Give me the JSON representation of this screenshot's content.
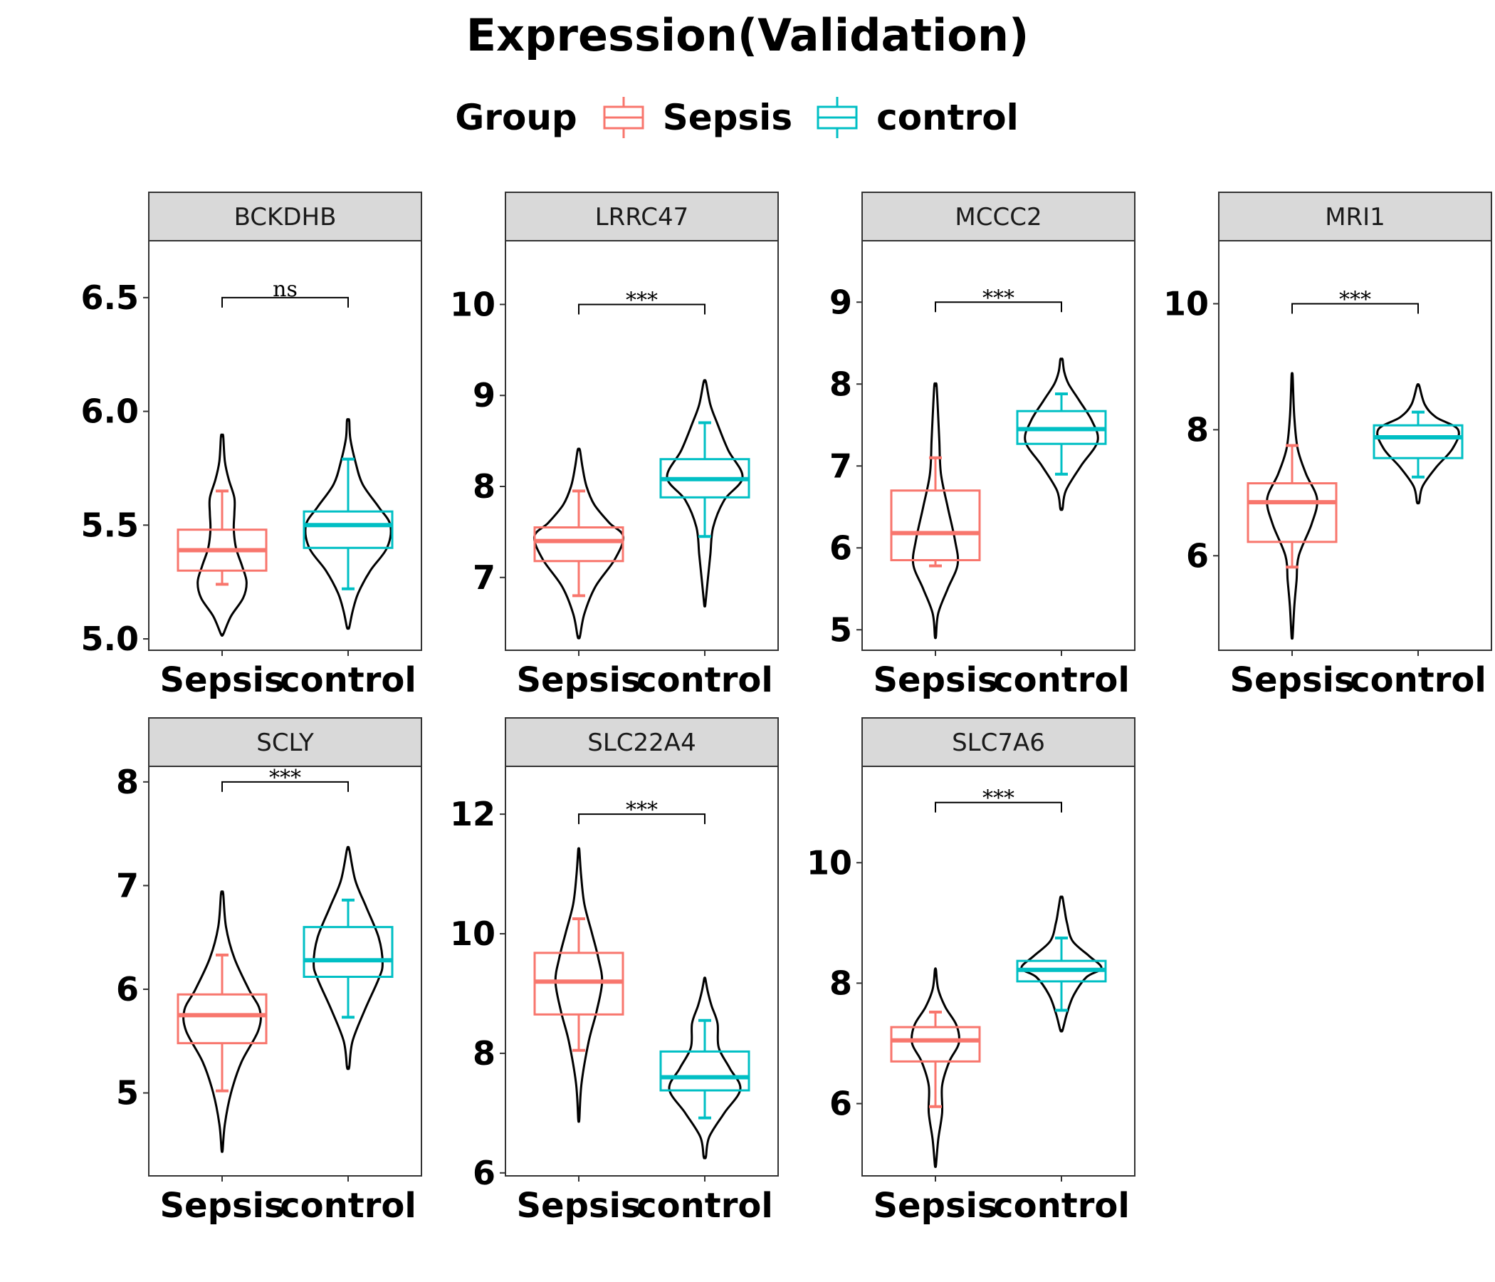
{
  "title": "Expression(Validation)",
  "legend": {
    "title": "Group",
    "items": [
      {
        "label": "Sepsis",
        "color": "#F8766D"
      },
      {
        "label": "control",
        "color": "#00BFC4"
      }
    ]
  },
  "chart_data": {
    "type": "violin+box",
    "categories": [
      "Sepsis",
      "control"
    ],
    "colors": {
      "Sepsis": "#F8766D",
      "control": "#00BFC4",
      "violin": "#000000",
      "strip": "#D9D9D9"
    },
    "grid": false,
    "legend_position": "top",
    "panels": [
      {
        "name": "BCKDHB",
        "ylim": [
          4.95,
          6.75
        ],
        "yticks": [
          5.0,
          5.5,
          6.0,
          6.5
        ],
        "ytick_labels": [
          "5.0",
          "5.5",
          "6.0",
          "6.5"
        ],
        "significance": {
          "label": "ns",
          "y": 6.5
        },
        "groups": [
          {
            "group": "Sepsis",
            "whisker_low": 5.24,
            "q1": 5.3,
            "median": 5.39,
            "q3": 5.48,
            "whisker_high": 5.65,
            "violin": [
              [
                5.02,
                0.02
              ],
              [
                5.1,
                0.16
              ],
              [
                5.18,
                0.38
              ],
              [
                5.25,
                0.44
              ],
              [
                5.32,
                0.36
              ],
              [
                5.4,
                0.25
              ],
              [
                5.48,
                0.21
              ],
              [
                5.55,
                0.22
              ],
              [
                5.62,
                0.22
              ],
              [
                5.7,
                0.12
              ],
              [
                5.78,
                0.05
              ],
              [
                5.89,
                0.02
              ]
            ]
          },
          {
            "group": "control",
            "whisker_low": 5.22,
            "q1": 5.4,
            "median": 5.5,
            "q3": 5.56,
            "whisker_high": 5.79,
            "violin": [
              [
                5.05,
                0.02
              ],
              [
                5.12,
                0.08
              ],
              [
                5.2,
                0.18
              ],
              [
                5.3,
                0.4
              ],
              [
                5.4,
                0.7
              ],
              [
                5.5,
                0.76
              ],
              [
                5.58,
                0.55
              ],
              [
                5.68,
                0.26
              ],
              [
                5.78,
                0.13
              ],
              [
                5.88,
                0.04
              ],
              [
                5.96,
                0.02
              ]
            ]
          }
        ]
      },
      {
        "name": "LRRC47",
        "ylim": [
          6.2,
          10.7
        ],
        "yticks": [
          7,
          8,
          9,
          10
        ],
        "ytick_labels": [
          "7",
          "8",
          "9",
          "10"
        ],
        "significance": {
          "label": "***",
          "y": 10.0
        },
        "groups": [
          {
            "group": "Sepsis",
            "whisker_low": 6.8,
            "q1": 7.18,
            "median": 7.4,
            "q3": 7.55,
            "whisker_high": 7.95,
            "violin": [
              [
                6.35,
                0.02
              ],
              [
                6.6,
                0.1
              ],
              [
                6.9,
                0.3
              ],
              [
                7.2,
                0.65
              ],
              [
                7.45,
                0.8
              ],
              [
                7.6,
                0.55
              ],
              [
                7.8,
                0.28
              ],
              [
                8.0,
                0.14
              ],
              [
                8.2,
                0.07
              ],
              [
                8.4,
                0.02
              ]
            ]
          },
          {
            "group": "control",
            "whisker_low": 7.45,
            "q1": 7.88,
            "median": 8.08,
            "q3": 8.3,
            "whisker_high": 8.7,
            "violin": [
              [
                6.7,
                0.01
              ],
              [
                6.95,
                0.05
              ],
              [
                7.25,
                0.1
              ],
              [
                7.55,
                0.15
              ],
              [
                7.85,
                0.35
              ],
              [
                8.1,
                0.68
              ],
              [
                8.4,
                0.42
              ],
              [
                8.7,
                0.22
              ],
              [
                8.9,
                0.1
              ],
              [
                9.15,
                0.02
              ]
            ]
          }
        ]
      },
      {
        "name": "MCCC2",
        "ylim": [
          4.75,
          9.75
        ],
        "yticks": [
          5,
          6,
          7,
          8,
          9
        ],
        "ytick_labels": [
          "5",
          "6",
          "7",
          "8",
          "9"
        ],
        "significance": {
          "label": "***",
          "y": 9.0
        },
        "groups": [
          {
            "group": "Sepsis",
            "whisker_low": 5.78,
            "q1": 5.85,
            "median": 6.18,
            "q3": 6.7,
            "whisker_high": 7.1,
            "violin": [
              [
                4.92,
                0.01
              ],
              [
                5.2,
                0.05
              ],
              [
                5.5,
                0.22
              ],
              [
                5.8,
                0.4
              ],
              [
                6.1,
                0.35
              ],
              [
                6.5,
                0.22
              ],
              [
                6.9,
                0.1
              ],
              [
                7.3,
                0.07
              ],
              [
                7.6,
                0.05
              ],
              [
                7.98,
                0.02
              ]
            ]
          },
          {
            "group": "control",
            "whisker_low": 6.9,
            "q1": 7.27,
            "median": 7.45,
            "q3": 7.67,
            "whisker_high": 7.88,
            "violin": [
              [
                6.48,
                0.02
              ],
              [
                6.7,
                0.08
              ],
              [
                7.0,
                0.35
              ],
              [
                7.3,
                0.65
              ],
              [
                7.55,
                0.55
              ],
              [
                7.8,
                0.32
              ],
              [
                8.0,
                0.13
              ],
              [
                8.15,
                0.05
              ],
              [
                8.3,
                0.02
              ]
            ]
          }
        ]
      },
      {
        "name": "MRI1",
        "ylim": [
          4.5,
          11.0
        ],
        "yticks": [
          6,
          8,
          10
        ],
        "ytick_labels": [
          "6",
          "8",
          "10"
        ],
        "significance": {
          "label": "***",
          "y": 10.0
        },
        "groups": [
          {
            "group": "Sepsis",
            "whisker_low": 5.82,
            "q1": 6.22,
            "median": 6.85,
            "q3": 7.15,
            "whisker_high": 7.75,
            "violin": [
              [
                4.72,
                0.01
              ],
              [
                5.2,
                0.04
              ],
              [
                5.6,
                0.08
              ],
              [
                6.0,
                0.12
              ],
              [
                6.5,
                0.35
              ],
              [
                6.9,
                0.45
              ],
              [
                7.3,
                0.25
              ],
              [
                7.7,
                0.1
              ],
              [
                8.2,
                0.04
              ],
              [
                8.85,
                0.01
              ]
            ]
          },
          {
            "group": "control",
            "whisker_low": 7.25,
            "q1": 7.55,
            "median": 7.88,
            "q3": 8.07,
            "whisker_high": 8.28,
            "violin": [
              [
                6.85,
                0.02
              ],
              [
                7.1,
                0.08
              ],
              [
                7.4,
                0.32
              ],
              [
                7.7,
                0.62
              ],
              [
                8.0,
                0.72
              ],
              [
                8.2,
                0.32
              ],
              [
                8.4,
                0.12
              ],
              [
                8.7,
                0.02
              ]
            ]
          }
        ]
      },
      {
        "name": "SCLY",
        "ylim": [
          4.2,
          8.15
        ],
        "yticks": [
          5,
          6,
          7,
          8
        ],
        "ytick_labels": [
          "5",
          "6",
          "7",
          "8"
        ],
        "significance": {
          "label": "***",
          "y": 8.0
        },
        "groups": [
          {
            "group": "Sepsis",
            "whisker_low": 5.02,
            "q1": 5.48,
            "median": 5.75,
            "q3": 5.95,
            "whisker_high": 6.33,
            "violin": [
              [
                4.45,
                0.01
              ],
              [
                4.7,
                0.05
              ],
              [
                5.0,
                0.16
              ],
              [
                5.3,
                0.35
              ],
              [
                5.6,
                0.65
              ],
              [
                5.8,
                0.68
              ],
              [
                6.0,
                0.48
              ],
              [
                6.3,
                0.22
              ],
              [
                6.6,
                0.07
              ],
              [
                6.92,
                0.02
              ]
            ]
          },
          {
            "group": "control",
            "whisker_low": 5.73,
            "q1": 6.12,
            "median": 6.28,
            "q3": 6.6,
            "whisker_high": 6.86,
            "violin": [
              [
                5.25,
                0.02
              ],
              [
                5.5,
                0.08
              ],
              [
                5.8,
                0.3
              ],
              [
                6.1,
                0.55
              ],
              [
                6.25,
                0.62
              ],
              [
                6.5,
                0.55
              ],
              [
                6.8,
                0.32
              ],
              [
                7.05,
                0.13
              ],
              [
                7.35,
                0.02
              ]
            ]
          }
        ]
      },
      {
        "name": "SLC22A4",
        "ylim": [
          5.95,
          12.8
        ],
        "yticks": [
          6,
          8,
          10,
          12
        ],
        "ytick_labels": [
          "6",
          "8",
          "10",
          "12"
        ],
        "significance": {
          "label": "***",
          "y": 12.0
        },
        "groups": [
          {
            "group": "Sepsis",
            "whisker_low": 8.05,
            "q1": 8.65,
            "median": 9.2,
            "q3": 9.68,
            "whisker_high": 10.25,
            "violin": [
              [
                6.9,
                0.01
              ],
              [
                7.5,
                0.05
              ],
              [
                8.2,
                0.18
              ],
              [
                8.7,
                0.32
              ],
              [
                9.2,
                0.42
              ],
              [
                9.6,
                0.35
              ],
              [
                10.0,
                0.24
              ],
              [
                10.5,
                0.1
              ],
              [
                11.0,
                0.04
              ],
              [
                11.4,
                0.01
              ]
            ]
          },
          {
            "group": "control",
            "whisker_low": 6.92,
            "q1": 7.38,
            "median": 7.6,
            "q3": 8.03,
            "whisker_high": 8.55,
            "violin": [
              [
                6.27,
                0.02
              ],
              [
                6.6,
                0.08
              ],
              [
                7.0,
                0.35
              ],
              [
                7.4,
                0.64
              ],
              [
                7.75,
                0.45
              ],
              [
                8.1,
                0.25
              ],
              [
                8.5,
                0.23
              ],
              [
                8.8,
                0.12
              ],
              [
                9.05,
                0.05
              ],
              [
                9.25,
                0.01
              ]
            ]
          }
        ]
      },
      {
        "name": "SLC7A6",
        "ylim": [
          4.8,
          11.6
        ],
        "yticks": [
          6,
          8,
          10
        ],
        "ytick_labels": [
          "6",
          "8",
          "10"
        ],
        "significance": {
          "label": "***",
          "y": 11.0
        },
        "groups": [
          {
            "group": "Sepsis",
            "whisker_low": 5.95,
            "q1": 6.7,
            "median": 7.05,
            "q3": 7.27,
            "whisker_high": 7.52,
            "violin": [
              [
                4.98,
                0.01
              ],
              [
                5.4,
                0.05
              ],
              [
                5.85,
                0.12
              ],
              [
                6.3,
                0.12
              ],
              [
                6.7,
                0.25
              ],
              [
                7.0,
                0.42
              ],
              [
                7.3,
                0.38
              ],
              [
                7.6,
                0.18
              ],
              [
                7.9,
                0.05
              ],
              [
                8.22,
                0.01
              ]
            ]
          },
          {
            "group": "control",
            "whisker_low": 7.55,
            "q1": 8.03,
            "median": 8.22,
            "q3": 8.37,
            "whisker_high": 8.75,
            "violin": [
              [
                7.22,
                0.02
              ],
              [
                7.5,
                0.1
              ],
              [
                7.8,
                0.22
              ],
              [
                8.1,
                0.45
              ],
              [
                8.25,
                0.72
              ],
              [
                8.45,
                0.5
              ],
              [
                8.7,
                0.2
              ],
              [
                9.0,
                0.1
              ],
              [
                9.2,
                0.06
              ],
              [
                9.42,
                0.02
              ]
            ]
          }
        ]
      }
    ]
  }
}
